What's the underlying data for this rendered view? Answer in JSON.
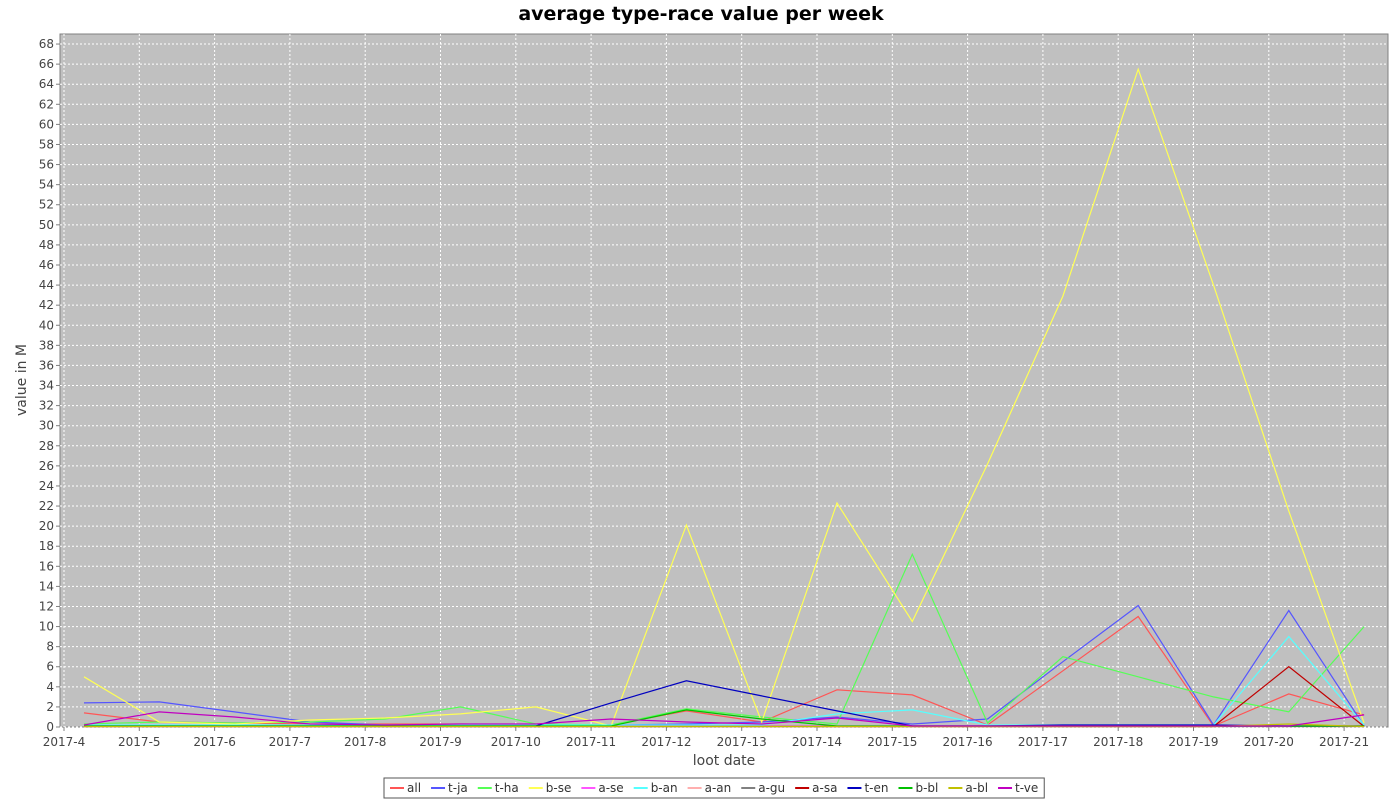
{
  "chart_data": {
    "type": "line",
    "title": "average type-race value per week",
    "xlabel": "loot date",
    "ylabel": "value in M",
    "ylim": [
      0,
      69
    ],
    "ytick_step": 2,
    "grid": true,
    "legend": "bottom",
    "categories": [
      "2017-4",
      "2017-5",
      "2017-6",
      "2017-7",
      "2017-8",
      "2017-9",
      "2017-10",
      "2017-11",
      "2017-12",
      "2017-13",
      "2017-14",
      "2017-15",
      "2017-16",
      "2017-17",
      "2017-18",
      "2017-19",
      "2017-20",
      "2017-21"
    ],
    "series": [
      {
        "name": "all",
        "color": "#ff5555",
        "values": [
          1.4,
          0.5,
          0.4,
          0.3,
          0.3,
          0.3,
          0.2,
          0.2,
          1.6,
          0.5,
          3.7,
          3.2,
          0.2,
          5.6,
          11.0,
          0.1,
          3.3,
          1.2
        ]
      },
      {
        "name": "t-ja",
        "color": "#5555ff",
        "values": [
          2.4,
          2.5,
          1.5,
          0.5,
          0.2,
          0.2,
          0.1,
          0.2,
          0.3,
          0.5,
          1.0,
          0.3,
          0.8,
          6.5,
          12.1,
          0.2,
          11.6,
          0.1
        ]
      },
      {
        "name": "t-ha",
        "color": "#55ff55",
        "values": [
          0.3,
          0.5,
          0.4,
          0.5,
          0.8,
          2.0,
          0.3,
          0.2,
          1.8,
          1.0,
          0.3,
          17.2,
          0.4,
          7.0,
          5.0,
          3.0,
          1.5,
          10.0
        ]
      },
      {
        "name": "b-se",
        "color": "#ffff55",
        "values": [
          5.0,
          0.5,
          0.3,
          0.7,
          0.9,
          1.3,
          2.0,
          0.1,
          20.1,
          0.5,
          22.3,
          10.5,
          26.2,
          42.9,
          65.5,
          44.0,
          21.5,
          0.4
        ]
      },
      {
        "name": "a-se",
        "color": "#ff55ff",
        "values": [
          0.1,
          0.1,
          0.1,
          0.1,
          0.1,
          0.1,
          0.1,
          0.1,
          0.1,
          0.1,
          0.1,
          0.1,
          0.1,
          0.1,
          0.1,
          0.1,
          0.1,
          0.1
        ]
      },
      {
        "name": "b-an",
        "color": "#55ffff",
        "values": [
          0.2,
          0.2,
          0.2,
          0.2,
          0.2,
          0.2,
          0.2,
          0.2,
          0.2,
          0.2,
          1.3,
          1.7,
          0.2,
          0.2,
          0.2,
          0.2,
          9.0,
          0.2
        ]
      },
      {
        "name": "a-an",
        "color": "#ffafaf",
        "values": [
          0.05,
          0.05,
          0.05,
          0.05,
          0.05,
          0.05,
          0.05,
          0.05,
          0.05,
          0.05,
          0.05,
          0.05,
          0.05,
          0.05,
          0.05,
          0.05,
          0.05,
          0.05
        ]
      },
      {
        "name": "a-gu",
        "color": "#808080",
        "values": [
          0.05,
          0.05,
          0.05,
          0.05,
          0.05,
          0.05,
          0.05,
          0.05,
          0.05,
          0.05,
          0.05,
          0.05,
          0.05,
          0.05,
          0.05,
          0.05,
          0.05,
          0.05
        ]
      },
      {
        "name": "a-sa",
        "color": "#c00000",
        "values": [
          0.05,
          0.05,
          0.05,
          0.05,
          0.05,
          0.05,
          0.05,
          0.05,
          0.05,
          0.05,
          0.05,
          0.05,
          0.05,
          0.05,
          0.05,
          0.05,
          6.0,
          0.05
        ]
      },
      {
        "name": "t-en",
        "color": "#0000c0",
        "values": [
          0.1,
          0.1,
          0.1,
          0.1,
          0.1,
          0.1,
          0.1,
          2.4,
          4.6,
          3.1,
          1.6,
          0.1,
          0.1,
          0.2,
          0.2,
          0.2,
          0.1,
          0.1
        ]
      },
      {
        "name": "b-bl",
        "color": "#00c000",
        "values": [
          0.1,
          0.1,
          0.1,
          0.1,
          0.1,
          0.1,
          0.1,
          0.1,
          1.7,
          0.8,
          0.1,
          0.1,
          0.1,
          0.1,
          0.1,
          0.1,
          0.1,
          0.1
        ]
      },
      {
        "name": "a-bl",
        "color": "#c0c000",
        "values": [
          0.05,
          0.05,
          0.05,
          0.05,
          0.05,
          0.05,
          0.05,
          0.05,
          0.05,
          0.05,
          0.05,
          0.05,
          0.05,
          0.05,
          0.05,
          0.05,
          0.3,
          0.05
        ]
      },
      {
        "name": "t-ve",
        "color": "#c000c0",
        "values": [
          0.2,
          1.5,
          1.0,
          0.3,
          0.2,
          0.3,
          0.3,
          0.8,
          0.5,
          0.3,
          0.9,
          0.1,
          0.1,
          0.1,
          0.1,
          0.1,
          0.1,
          1.2
        ]
      }
    ]
  }
}
